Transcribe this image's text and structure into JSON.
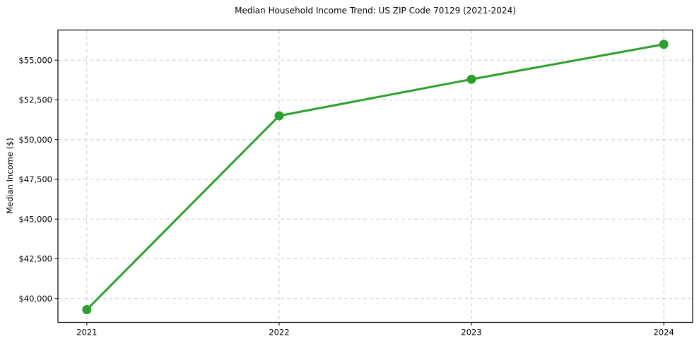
{
  "chart_data": {
    "type": "line",
    "title": "Median Household Income Trend: US ZIP Code 70129 (2021-2024)",
    "xlabel": "",
    "ylabel": "Median Income ($)",
    "x": [
      2021,
      2022,
      2023,
      2024
    ],
    "series": [
      {
        "name": "Median Income",
        "values": [
          39300,
          51500,
          53800,
          56000
        ],
        "color": "#2ca02c"
      }
    ],
    "x_tick_labels": [
      "2021",
      "2022",
      "2023",
      "2024"
    ],
    "y_ticks": [
      40000,
      42500,
      45000,
      47500,
      50000,
      52500,
      55000
    ],
    "y_tick_labels": [
      "$40,000",
      "$42,500",
      "$45,000",
      "$47,500",
      "$50,000",
      "$52,500",
      "$55,000"
    ],
    "xlim": [
      2020.85,
      2024.15
    ],
    "ylim": [
      38500,
      56900
    ],
    "grid": "dashed",
    "grid_color": "#cccccc",
    "spine_color": "#000000",
    "line_width": 3,
    "marker": "circle",
    "marker_radius": 6.5,
    "legend": "none"
  }
}
